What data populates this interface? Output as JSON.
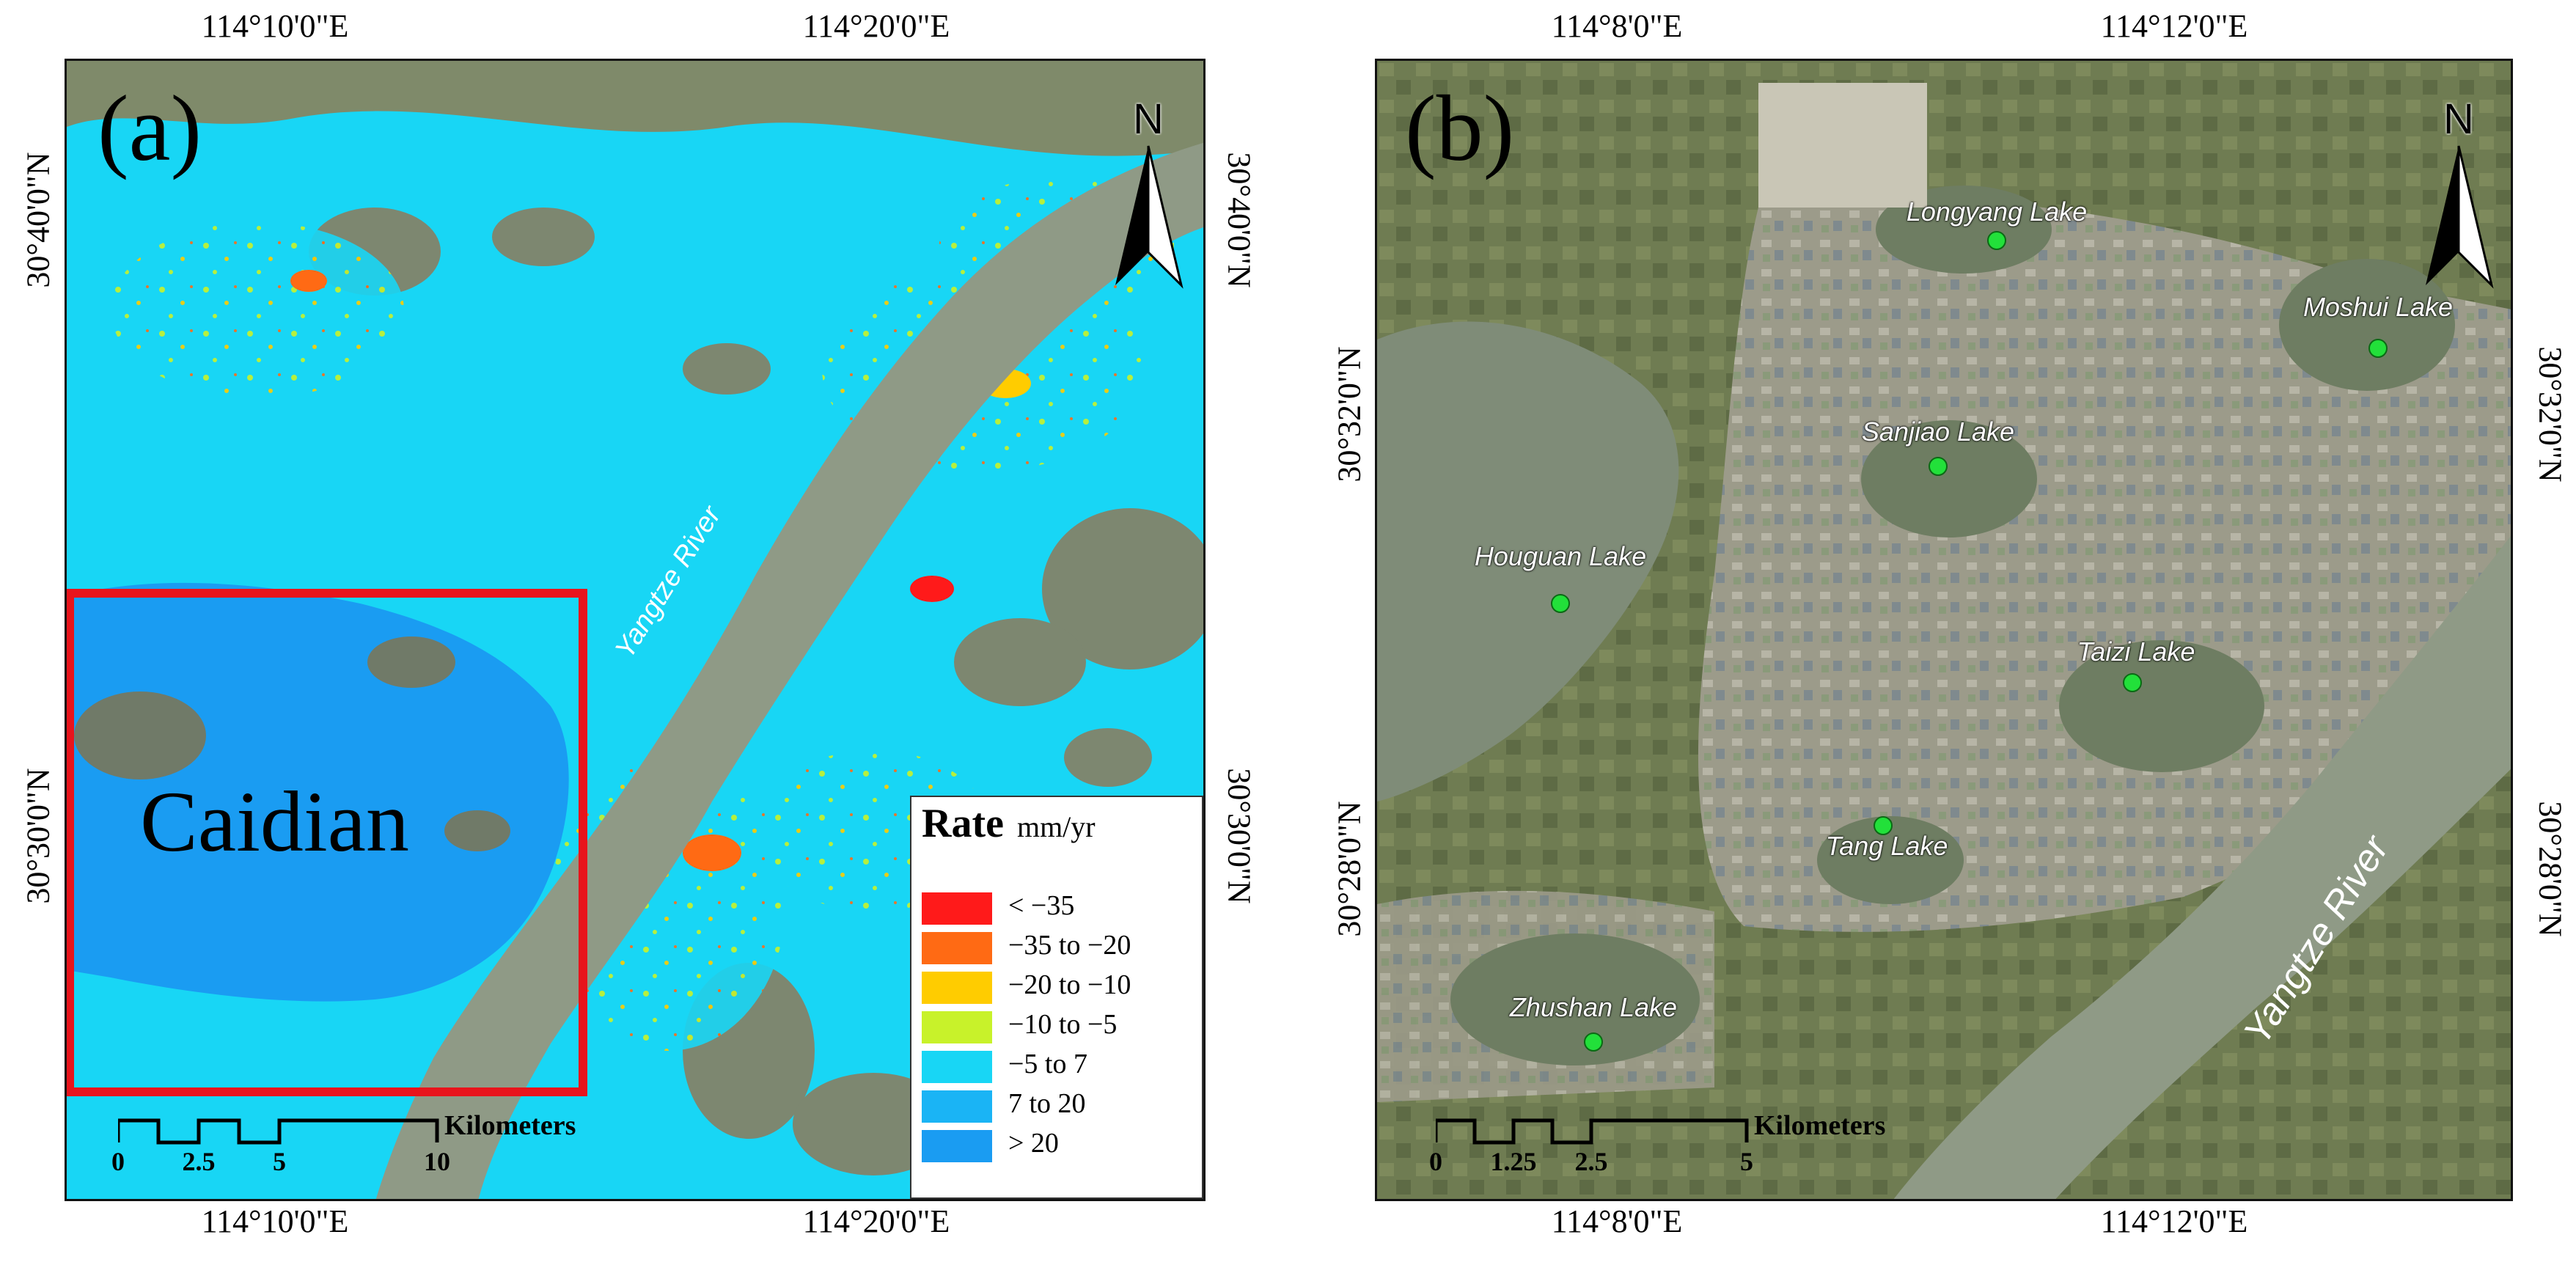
{
  "panel_a": {
    "label": "(a)",
    "top_lon_labels": [
      "114°10'0\"E",
      "114°20'0\"E"
    ],
    "bottom_lon_labels": [
      "114°10'0\"E",
      "114°20'0\"E"
    ],
    "left_lat_labels": [
      "30°40'0\"N",
      "30°30'0\"N"
    ],
    "right_lat_labels": [
      "30°40'0\"N",
      "30°30'0\"N"
    ],
    "north_label": "N",
    "region_label": "Caidian",
    "river_label": "Yangtze River",
    "legend": {
      "title": "Rate",
      "unit": "mm/yr",
      "classes": [
        {
          "label": "< −35",
          "color": "#ff1a1a"
        },
        {
          "label": "−35  to −20",
          "color": "#ff6a14"
        },
        {
          "label": "−20  to −10",
          "color": "#ffcc00"
        },
        {
          "label": "−10  to −5",
          "color": "#c8f22a"
        },
        {
          "label": "−5  to 7",
          "color": "#18d6f5"
        },
        {
          "label": "7  to 20",
          "color": "#1ab4f5"
        },
        {
          "label": "> 20",
          "color": "#1a9cf2"
        }
      ]
    },
    "scale_bar": {
      "ticks": [
        "0",
        "2.5",
        "5",
        "10"
      ],
      "unit": "Kilometers"
    }
  },
  "panel_b": {
    "label": "(b)",
    "top_lon_labels": [
      "114°8'0\"E",
      "114°12'0\"E"
    ],
    "bottom_lon_labels": [
      "114°8'0\"E",
      "114°12'0\"E"
    ],
    "left_lat_labels": [
      "30°32'0\"N",
      "30°28'0\"N"
    ],
    "right_lat_labels": [
      "30°32'0\"N",
      "30°28'0\"N"
    ],
    "north_label": "N",
    "river_label": "Yangtze River",
    "lakes": [
      {
        "name": "Longyang Lake"
      },
      {
        "name": "Moshui Lake"
      },
      {
        "name": "Sanjiao Lake"
      },
      {
        "name": "Houguan Lake"
      },
      {
        "name": "Taizi Lake"
      },
      {
        "name": "Tang Lake"
      },
      {
        "name": "Zhushan Lake"
      }
    ],
    "lake_dot_color": "#22e03a",
    "scale_bar": {
      "ticks": [
        "0",
        "1.25",
        "2.5",
        "5"
      ],
      "unit": "Kilometers"
    }
  },
  "colors": {
    "study_area_box": "#e8141c",
    "river_water": "#8f9a86",
    "imagery_land": "#8a8f6a"
  }
}
